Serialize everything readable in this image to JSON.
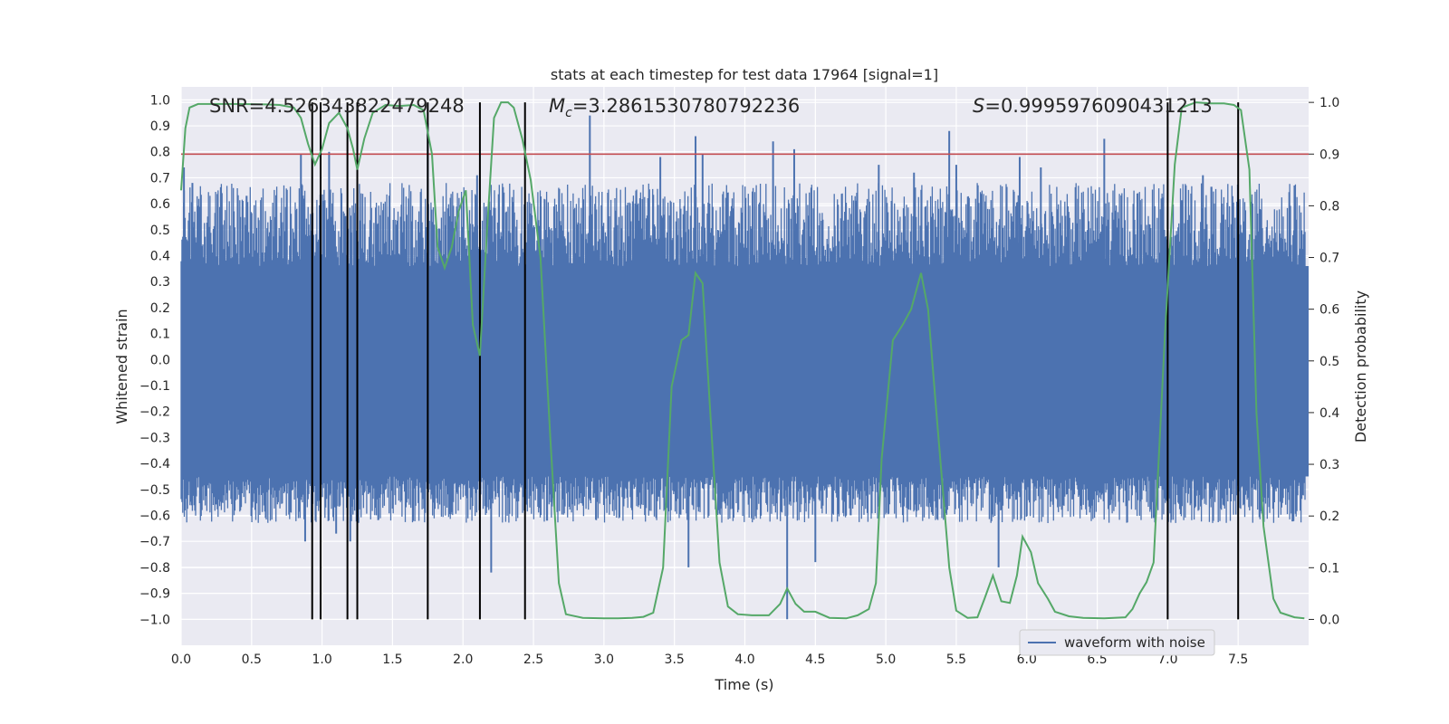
{
  "chart_data": {
    "type": "line",
    "title": "stats at each timestep for test data 17964 [signal=1]",
    "xlabel": "Time (s)",
    "ylabel": "Whitened strain",
    "y2label": "Detection probability",
    "xlim": [
      0.0,
      8.0
    ],
    "ylim": [
      -1.1,
      1.05
    ],
    "y2lim": [
      -0.05,
      1.03
    ],
    "x_ticks": [
      0.0,
      0.5,
      1.0,
      1.5,
      2.0,
      2.5,
      3.0,
      3.5,
      4.0,
      4.5,
      5.0,
      5.5,
      6.0,
      6.5,
      7.0,
      7.5
    ],
    "y_ticks": [
      1.0,
      0.9,
      0.8,
      0.7,
      0.6,
      0.5,
      0.4,
      0.3,
      0.2,
      0.1,
      0.0,
      -0.1,
      -0.2,
      -0.3,
      -0.4,
      -0.5,
      -0.6,
      -0.7,
      -0.8,
      -0.9,
      -1.0
    ],
    "y2_ticks": [
      1.0,
      0.9,
      0.8,
      0.7,
      0.6,
      0.5,
      0.4,
      0.3,
      0.2,
      0.1,
      0.0
    ],
    "grid": true,
    "legend": {
      "location": "lower-right",
      "entries": [
        "waveform with noise"
      ]
    },
    "annotations": {
      "snr": "SNR=4.526343822479248",
      "mc_symbol": "M",
      "mc_sub": "c",
      "mc_value": "=3.2861530780792236",
      "s_symbol": "S",
      "s_value": "=0.9995976090431213"
    },
    "threshold": {
      "y2": 0.9,
      "color": "#c44e52"
    },
    "event_lines_x": [
      0.93,
      0.99,
      1.18,
      1.25,
      1.75,
      2.12,
      2.44,
      7.0,
      7.5
    ],
    "waveform": {
      "name": "waveform with noise",
      "color": "#4c72b0",
      "band_min": -0.45,
      "band_max": 0.36,
      "spikes": [
        [
          0.02,
          0.74
        ],
        [
          0.08,
          0.68
        ],
        [
          0.85,
          0.79
        ],
        [
          0.88,
          -0.7
        ],
        [
          1.05,
          0.8
        ],
        [
          1.1,
          -0.67
        ],
        [
          1.2,
          -0.7
        ],
        [
          1.75,
          0.91
        ],
        [
          2.1,
          0.71
        ],
        [
          2.2,
          -0.82
        ],
        [
          2.9,
          0.94
        ],
        [
          3.4,
          0.78
        ],
        [
          3.6,
          -0.8
        ],
        [
          3.65,
          0.86
        ],
        [
          3.7,
          0.79
        ],
        [
          4.2,
          0.84
        ],
        [
          4.3,
          -1.0
        ],
        [
          4.35,
          0.81
        ],
        [
          4.5,
          -0.78
        ],
        [
          4.95,
          0.75
        ],
        [
          5.45,
          0.88
        ],
        [
          5.5,
          0.75
        ],
        [
          5.8,
          -0.8
        ],
        [
          5.95,
          0.78
        ],
        [
          6.1,
          0.74
        ],
        [
          6.55,
          0.85
        ],
        [
          6.9,
          -0.61
        ],
        [
          7.25,
          0.71
        ],
        [
          7.9,
          0.67
        ],
        [
          5.2,
          0.72
        ]
      ]
    },
    "probability": {
      "color": "#55a868",
      "x": [
        0.0,
        0.03,
        0.06,
        0.12,
        0.2,
        0.4,
        0.6,
        0.7,
        0.8,
        0.85,
        0.9,
        0.95,
        1.0,
        1.05,
        1.12,
        1.18,
        1.22,
        1.25,
        1.3,
        1.36,
        1.45,
        1.55,
        1.65,
        1.72,
        1.78,
        1.82,
        1.87,
        1.92,
        1.97,
        2.02,
        2.07,
        2.12,
        2.17,
        2.22,
        2.27,
        2.32,
        2.36,
        2.42,
        2.48,
        2.55,
        2.62,
        2.68,
        2.73,
        2.85,
        3.0,
        3.1,
        3.2,
        3.28,
        3.35,
        3.42,
        3.48,
        3.55,
        3.6,
        3.65,
        3.7,
        3.75,
        3.82,
        3.88,
        3.95,
        4.05,
        4.17,
        4.25,
        4.3,
        4.36,
        4.42,
        4.5,
        4.6,
        4.72,
        4.8,
        4.88,
        4.93,
        4.97,
        5.05,
        5.12,
        5.18,
        5.25,
        5.3,
        5.35,
        5.45,
        5.5,
        5.58,
        5.65,
        5.7,
        5.76,
        5.82,
        5.88,
        5.93,
        5.97,
        6.03,
        6.08,
        6.15,
        6.2,
        6.3,
        6.4,
        6.55,
        6.7,
        6.75,
        6.8,
        6.85,
        6.9,
        6.98,
        7.05,
        7.1,
        7.2,
        7.3,
        7.4,
        7.47,
        7.52,
        7.58,
        7.63,
        7.68,
        7.75,
        7.8,
        7.9,
        7.97
      ],
      "y": [
        0.83,
        0.95,
        0.99,
        0.997,
        0.997,
        0.997,
        0.996,
        0.995,
        0.99,
        0.97,
        0.92,
        0.88,
        0.91,
        0.96,
        0.98,
        0.95,
        0.91,
        0.87,
        0.93,
        0.98,
        0.995,
        0.993,
        0.995,
        0.985,
        0.9,
        0.72,
        0.68,
        0.72,
        0.79,
        0.83,
        0.57,
        0.51,
        0.75,
        0.97,
        1.0,
        1.0,
        0.99,
        0.93,
        0.85,
        0.7,
        0.35,
        0.07,
        0.01,
        0.003,
        0.002,
        0.002,
        0.003,
        0.005,
        0.013,
        0.1,
        0.45,
        0.54,
        0.55,
        0.67,
        0.65,
        0.42,
        0.11,
        0.025,
        0.01,
        0.008,
        0.008,
        0.03,
        0.06,
        0.03,
        0.015,
        0.015,
        0.003,
        0.002,
        0.008,
        0.02,
        0.07,
        0.31,
        0.54,
        0.57,
        0.6,
        0.67,
        0.6,
        0.43,
        0.1,
        0.017,
        0.003,
        0.004,
        0.04,
        0.085,
        0.035,
        0.032,
        0.085,
        0.16,
        0.13,
        0.07,
        0.04,
        0.015,
        0.006,
        0.003,
        0.002,
        0.004,
        0.02,
        0.05,
        0.072,
        0.11,
        0.55,
        0.88,
        0.99,
        1.0,
        0.998,
        0.998,
        0.995,
        0.985,
        0.87,
        0.4,
        0.18,
        0.04,
        0.013,
        0.004,
        0.002
      ]
    }
  }
}
